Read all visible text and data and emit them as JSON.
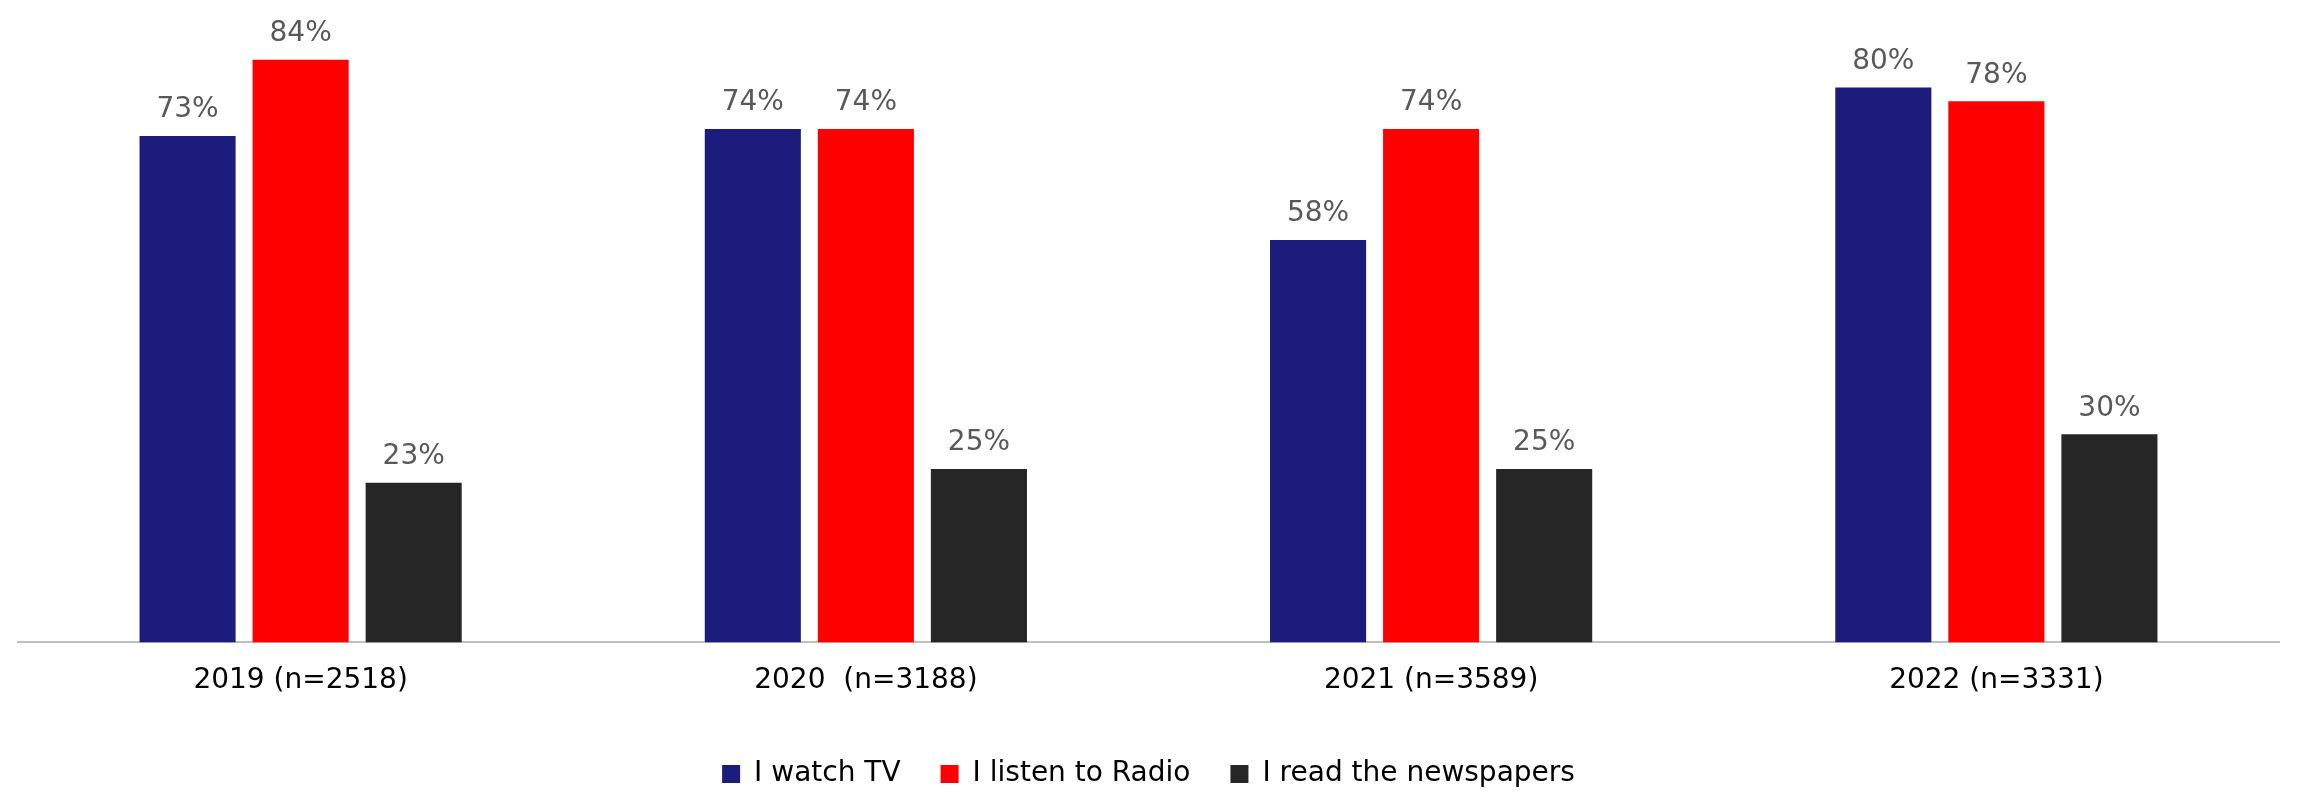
{
  "chart_data": {
    "type": "bar",
    "categories": [
      "2019 (n=2518)",
      "2020  (n=3188)",
      "2021 (n=3589)",
      "2022 (n=3331)"
    ],
    "series": [
      {
        "name": "I watch TV",
        "color": "#1c1c7c",
        "values": [
          73,
          74,
          58,
          80
        ],
        "value_labels": [
          "73%",
          "74%",
          "58%",
          "80%"
        ]
      },
      {
        "name": "I listen to Radio",
        "color": "#ff0000",
        "values": [
          84,
          74,
          74,
          78
        ],
        "value_labels": [
          "84%",
          "74%",
          "74%",
          "78%"
        ]
      },
      {
        "name": "I read the newspapers",
        "color": "#262626",
        "values": [
          23,
          25,
          25,
          30
        ],
        "value_labels": [
          "23%",
          "25%",
          "25%",
          "30%"
        ]
      }
    ],
    "legend": "bottom",
    "grid": false
  }
}
